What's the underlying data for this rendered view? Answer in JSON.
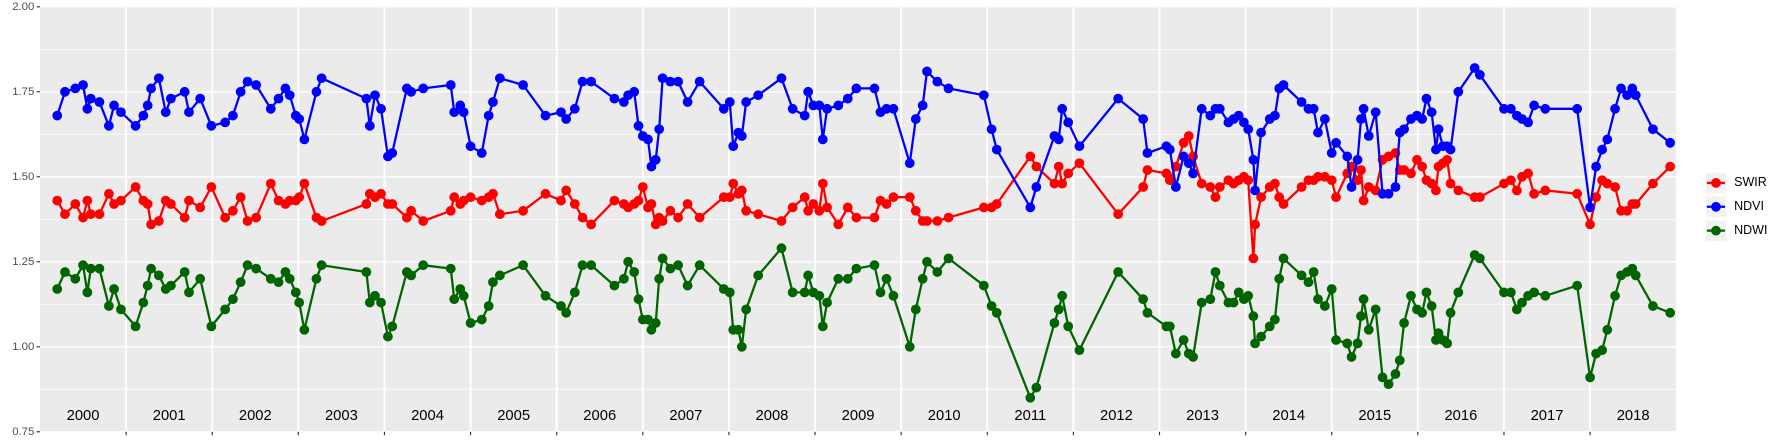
{
  "chart_data": {
    "type": "line",
    "xlim": [
      2000,
      2019
    ],
    "xticks": [
      2001,
      2002,
      2003,
      2004,
      2005,
      2006,
      2007,
      2008,
      2009,
      2010,
      2011,
      2012,
      2013,
      2014,
      2015,
      2016,
      2017,
      2018
    ],
    "annotations": [
      {
        "value": 2000.5,
        "label": "2000"
      },
      {
        "value": 2001.5,
        "label": "2001"
      },
      {
        "value": 2002.5,
        "label": "2002"
      },
      {
        "value": 2003.5,
        "label": "2003"
      },
      {
        "value": 2004.5,
        "label": "2004"
      },
      {
        "value": 2005.5,
        "label": "2005"
      },
      {
        "value": 2006.5,
        "label": "2006"
      },
      {
        "value": 2007.5,
        "label": "2007"
      },
      {
        "value": 2008.5,
        "label": "2008"
      },
      {
        "value": 2009.5,
        "label": "2009"
      },
      {
        "value": 2010.5,
        "label": "2010"
      },
      {
        "value": 2011.5,
        "label": "2011"
      },
      {
        "value": 2012.5,
        "label": "2012"
      },
      {
        "value": 2013.5,
        "label": "2013"
      },
      {
        "value": 2014.5,
        "label": "2014"
      },
      {
        "value": 2015.5,
        "label": "2015"
      },
      {
        "value": 2016.5,
        "label": "2016"
      },
      {
        "value": 2017.5,
        "label": "2017"
      },
      {
        "value": 2018.5,
        "label": "2018"
      }
    ],
    "ylim": [
      0.75,
      2
    ],
    "yticks": [
      0.75,
      {
        "value": 1,
        "label": "1.00"
      },
      1.25,
      {
        "value": 1.5,
        "label": "1.50"
      },
      1.75,
      {
        "value": 2,
        "label": "2.00"
      }
    ],
    "grid": true,
    "legend": "right",
    "x": [
      2000.2,
      2000.29,
      2000.41,
      2000.5,
      2000.55,
      2000.59,
      2000.69,
      2000.8,
      2000.86,
      2000.94,
      2001.11,
      2001.2,
      2001.25,
      2001.29,
      2001.38,
      2001.46,
      2001.52,
      2001.68,
      2001.73,
      2001.86,
      2001.99,
      2002.15,
      2002.24,
      2002.33,
      2002.41,
      2002.51,
      2002.68,
      2002.77,
      2002.85,
      2002.9,
      2002.97,
      2003.01,
      2003.07,
      2003.21,
      2003.27,
      2003.79,
      2003.83,
      2003.89,
      2003.96,
      2004.04,
      2004.09,
      2004.26,
      2004.31,
      2004.45,
      2004.77,
      2004.81,
      2004.88,
      2004.92,
      2005.0,
      2005.13,
      2005.21,
      2005.26,
      2005.34,
      2005.61,
      2005.87,
      2006.05,
      2006.11,
      2006.21,
      2006.3,
      2006.4,
      2006.67,
      2006.78,
      2006.83,
      2006.9,
      2006.95,
      2007.0,
      2007.06,
      2007.1,
      2007.15,
      2007.19,
      2007.23,
      2007.32,
      2007.41,
      2007.52,
      2007.66,
      2007.94,
      2008.01,
      2008.05,
      2008.11,
      2008.15,
      2008.2,
      2008.34,
      2008.61,
      2008.74,
      2008.88,
      2008.92,
      2008.98,
      2009.05,
      2009.09,
      2009.14,
      2009.27,
      2009.38,
      2009.48,
      2009.69,
      2009.76,
      2009.83,
      2009.91,
      2010.1,
      2010.17,
      2010.25,
      2010.3,
      2010.42,
      2010.55,
      2010.96,
      2011.05,
      2011.11,
      2011.5,
      2011.57,
      2011.78,
      2011.83,
      2011.87,
      2011.94,
      2012.07,
      2012.52,
      2012.81,
      2012.86,
      2013.08,
      2013.12,
      2013.19,
      2013.28,
      2013.34,
      2013.39,
      2013.49,
      2013.59,
      2013.65,
      2013.7,
      2013.8,
      2013.86,
      2013.92,
      2013.98,
      2014.03,
      2014.09,
      2014.11,
      2014.18,
      2014.28,
      2014.34,
      2014.39,
      2014.44,
      2014.65,
      2014.73,
      2014.79,
      2014.84,
      2014.92,
      2015.0,
      2015.05,
      2015.18,
      2015.23,
      2015.3,
      2015.34,
      2015.37,
      2015.43,
      2015.51,
      2015.59,
      2015.66,
      2015.74,
      2015.79,
      2015.84,
      2015.92,
      2015.99,
      2016.05,
      2016.1,
      2016.16,
      2016.21,
      2016.24,
      2016.29,
      2016.34,
      2016.38,
      2016.47,
      2016.66,
      2016.72,
      2017.0,
      2017.08,
      2017.15,
      2017.21,
      2017.28,
      2017.35,
      2017.48,
      2017.85,
      2018.0,
      2018.07,
      2018.14,
      2018.2,
      2018.29,
      2018.36,
      2018.43,
      2018.49,
      2018.53,
      2018.73,
      2018.93
    ],
    "series": [
      {
        "name": "SWIR",
        "color": "#ff0000",
        "values": [
          1.43,
          1.39,
          1.42,
          1.38,
          1.43,
          1.39,
          1.39,
          1.45,
          1.42,
          1.43,
          1.47,
          1.43,
          1.42,
          1.36,
          1.37,
          1.43,
          1.42,
          1.38,
          1.43,
          1.41,
          1.47,
          1.38,
          1.4,
          1.44,
          1.37,
          1.38,
          1.48,
          1.43,
          1.42,
          1.43,
          1.43,
          1.44,
          1.48,
          1.38,
          1.37,
          1.42,
          1.45,
          1.44,
          1.45,
          1.42,
          1.42,
          1.38,
          1.4,
          1.37,
          1.4,
          1.44,
          1.42,
          1.43,
          1.44,
          1.43,
          1.44,
          1.45,
          1.39,
          1.4,
          1.45,
          1.43,
          1.46,
          1.42,
          1.38,
          1.36,
          1.43,
          1.42,
          1.41,
          1.42,
          1.43,
          1.47,
          1.41,
          1.42,
          1.36,
          1.38,
          1.37,
          1.4,
          1.38,
          1.42,
          1.38,
          1.44,
          1.44,
          1.48,
          1.45,
          1.46,
          1.4,
          1.39,
          1.37,
          1.41,
          1.44,
          1.4,
          1.42,
          1.4,
          1.48,
          1.41,
          1.36,
          1.41,
          1.38,
          1.38,
          1.43,
          1.42,
          1.44,
          1.44,
          1.4,
          1.37,
          1.37,
          1.37,
          1.38,
          1.41,
          1.41,
          1.42,
          1.56,
          1.53,
          1.48,
          1.53,
          1.48,
          1.51,
          1.54,
          1.39,
          1.47,
          1.52,
          1.51,
          1.49,
          1.53,
          1.6,
          1.62,
          1.56,
          1.48,
          1.47,
          1.44,
          1.47,
          1.49,
          1.48,
          1.49,
          1.5,
          1.49,
          1.26,
          1.36,
          1.44,
          1.47,
          1.48,
          1.44,
          1.42,
          1.47,
          1.49,
          1.49,
          1.5,
          1.5,
          1.49,
          1.44,
          1.51,
          1.53,
          1.49,
          1.52,
          1.43,
          1.47,
          1.46,
          1.55,
          1.56,
          1.57,
          1.52,
          1.52,
          1.51,
          1.55,
          1.53,
          1.49,
          1.48,
          1.46,
          1.53,
          1.54,
          1.55,
          1.48,
          1.46,
          1.44,
          1.44,
          1.48,
          1.49,
          1.46,
          1.5,
          1.51,
          1.45,
          1.46,
          1.45,
          1.36,
          1.44,
          1.49,
          1.48,
          1.47,
          1.4,
          1.4,
          1.42,
          1.42,
          1.48,
          1.53
        ]
      },
      {
        "name": "NDVI",
        "color": "#0000ff",
        "values": [
          1.68,
          1.75,
          1.76,
          1.77,
          1.7,
          1.73,
          1.72,
          1.65,
          1.71,
          1.69,
          1.65,
          1.68,
          1.71,
          1.76,
          1.79,
          1.69,
          1.73,
          1.75,
          1.69,
          1.73,
          1.65,
          1.66,
          1.68,
          1.75,
          1.78,
          1.77,
          1.7,
          1.73,
          1.76,
          1.74,
          1.68,
          1.67,
          1.61,
          1.75,
          1.79,
          1.73,
          1.65,
          1.74,
          1.7,
          1.56,
          1.57,
          1.76,
          1.75,
          1.76,
          1.77,
          1.69,
          1.71,
          1.69,
          1.59,
          1.57,
          1.68,
          1.72,
          1.79,
          1.77,
          1.68,
          1.69,
          1.67,
          1.7,
          1.78,
          1.78,
          1.73,
          1.72,
          1.74,
          1.75,
          1.65,
          1.62,
          1.61,
          1.53,
          1.55,
          1.64,
          1.79,
          1.78,
          1.78,
          1.72,
          1.78,
          1.7,
          1.72,
          1.59,
          1.63,
          1.62,
          1.72,
          1.74,
          1.79,
          1.7,
          1.68,
          1.75,
          1.71,
          1.71,
          1.61,
          1.7,
          1.71,
          1.73,
          1.76,
          1.76,
          1.69,
          1.7,
          1.7,
          1.54,
          1.67,
          1.71,
          1.81,
          1.78,
          1.76,
          1.74,
          1.64,
          1.58,
          1.41,
          1.47,
          1.62,
          1.61,
          1.7,
          1.66,
          1.59,
          1.73,
          1.67,
          1.57,
          1.59,
          1.58,
          1.47,
          1.56,
          1.54,
          1.51,
          1.7,
          1.68,
          1.7,
          1.7,
          1.66,
          1.67,
          1.68,
          1.66,
          1.64,
          1.55,
          1.46,
          1.63,
          1.67,
          1.68,
          1.76,
          1.77,
          1.72,
          1.7,
          1.7,
          1.63,
          1.67,
          1.57,
          1.6,
          1.56,
          1.47,
          1.55,
          1.67,
          1.7,
          1.62,
          1.69,
          1.45,
          1.45,
          1.47,
          1.63,
          1.64,
          1.67,
          1.68,
          1.67,
          1.73,
          1.69,
          1.58,
          1.64,
          1.59,
          1.59,
          1.58,
          1.75,
          1.82,
          1.8,
          1.7,
          1.7,
          1.68,
          1.67,
          1.66,
          1.71,
          1.7,
          1.7,
          1.41,
          1.53,
          1.58,
          1.61,
          1.7,
          1.76,
          1.74,
          1.76,
          1.74,
          1.64,
          1.6
        ]
      },
      {
        "name": "NDWI",
        "color": "#006400",
        "values": [
          1.17,
          1.22,
          1.2,
          1.24,
          1.16,
          1.23,
          1.23,
          1.12,
          1.17,
          1.11,
          1.06,
          1.13,
          1.18,
          1.23,
          1.21,
          1.17,
          1.18,
          1.22,
          1.16,
          1.2,
          1.06,
          1.11,
          1.14,
          1.19,
          1.24,
          1.23,
          1.2,
          1.19,
          1.22,
          1.2,
          1.16,
          1.13,
          1.05,
          1.2,
          1.24,
          1.22,
          1.13,
          1.15,
          1.13,
          1.03,
          1.06,
          1.22,
          1.21,
          1.24,
          1.23,
          1.14,
          1.17,
          1.15,
          1.07,
          1.08,
          1.12,
          1.19,
          1.21,
          1.24,
          1.15,
          1.12,
          1.1,
          1.16,
          1.24,
          1.24,
          1.18,
          1.2,
          1.25,
          1.22,
          1.14,
          1.08,
          1.08,
          1.05,
          1.07,
          1.2,
          1.26,
          1.23,
          1.24,
          1.18,
          1.24,
          1.17,
          1.16,
          1.05,
          1.05,
          1.0,
          1.11,
          1.21,
          1.29,
          1.16,
          1.16,
          1.21,
          1.16,
          1.15,
          1.06,
          1.13,
          1.2,
          1.2,
          1.23,
          1.24,
          1.16,
          1.2,
          1.15,
          1.0,
          1.11,
          1.2,
          1.25,
          1.22,
          1.26,
          1.18,
          1.12,
          1.1,
          0.85,
          0.88,
          1.07,
          1.11,
          1.15,
          1.06,
          0.99,
          1.22,
          1.14,
          1.1,
          1.06,
          1.06,
          0.98,
          1.02,
          0.98,
          0.97,
          1.13,
          1.14,
          1.22,
          1.18,
          1.13,
          1.13,
          1.16,
          1.14,
          1.15,
          1.09,
          1.01,
          1.03,
          1.06,
          1.08,
          1.2,
          1.26,
          1.21,
          1.19,
          1.22,
          1.14,
          1.12,
          1.17,
          1.02,
          1.01,
          0.97,
          1.01,
          1.09,
          1.14,
          1.05,
          1.11,
          0.91,
          0.89,
          0.92,
          0.96,
          1.07,
          1.15,
          1.11,
          1.1,
          1.16,
          1.12,
          1.02,
          1.04,
          1.02,
          1.01,
          1.1,
          1.16,
          1.27,
          1.26,
          1.16,
          1.16,
          1.11,
          1.13,
          1.15,
          1.16,
          1.15,
          1.18,
          0.91,
          0.98,
          0.99,
          1.05,
          1.15,
          1.21,
          1.22,
          1.23,
          1.21,
          1.12,
          1.1
        ]
      }
    ]
  }
}
